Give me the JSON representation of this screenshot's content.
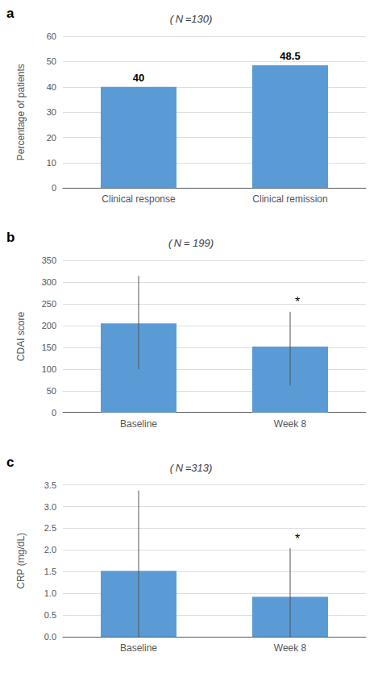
{
  "chart_data": [
    {
      "type": "bar",
      "title": "( N =130)",
      "panel_label": "a",
      "categories": [
        "Clinical response",
        "Clinical remission"
      ],
      "values": [
        40,
        48.5
      ],
      "color": "#5B9BD5",
      "y_label": "Percentage of patients",
      "ylim": [
        0,
        60
      ],
      "yticks": [
        0,
        10,
        20,
        30,
        40,
        50,
        60
      ],
      "grid": true,
      "data_labels": true
    },
    {
      "type": "bar",
      "title": "( N = 199)",
      "panel_label": "b",
      "categories": [
        "Baseline",
        "Week 8"
      ],
      "values": [
        205,
        152
      ],
      "errors_upper": [
        110,
        80
      ],
      "errors_lower": [
        105,
        90
      ],
      "color": "#5B9BD5",
      "y_label": "CDAI score",
      "ylim": [
        0,
        350
      ],
      "yticks": [
        0,
        50,
        100,
        150,
        200,
        250,
        300,
        350
      ],
      "grid": true,
      "annotations": [
        {
          "text": "*",
          "category": "Week 8"
        }
      ]
    },
    {
      "type": "bar",
      "title": "( N =313)",
      "panel_label": "c",
      "categories": [
        "Baseline",
        "Week 8"
      ],
      "values": [
        1.52,
        0.92
      ],
      "errors_upper": [
        1.85,
        1.12
      ],
      "errors_lower": [
        1.52,
        0.92
      ],
      "color": "#5B9BD5",
      "y_label": "CRP (mg/dL)",
      "ylim": [
        0,
        3.5
      ],
      "yticks": [
        {
          "value": 0,
          "label": "0.0"
        },
        0.5,
        {
          "value": 1,
          "label": "1.0"
        },
        1.5,
        {
          "value": 2,
          "label": "2.0"
        },
        2.5,
        {
          "value": 3,
          "label": "3.0"
        },
        3.5
      ],
      "grid": true,
      "annotations": [
        {
          "text": "*",
          "category": "Week 8"
        }
      ]
    }
  ]
}
